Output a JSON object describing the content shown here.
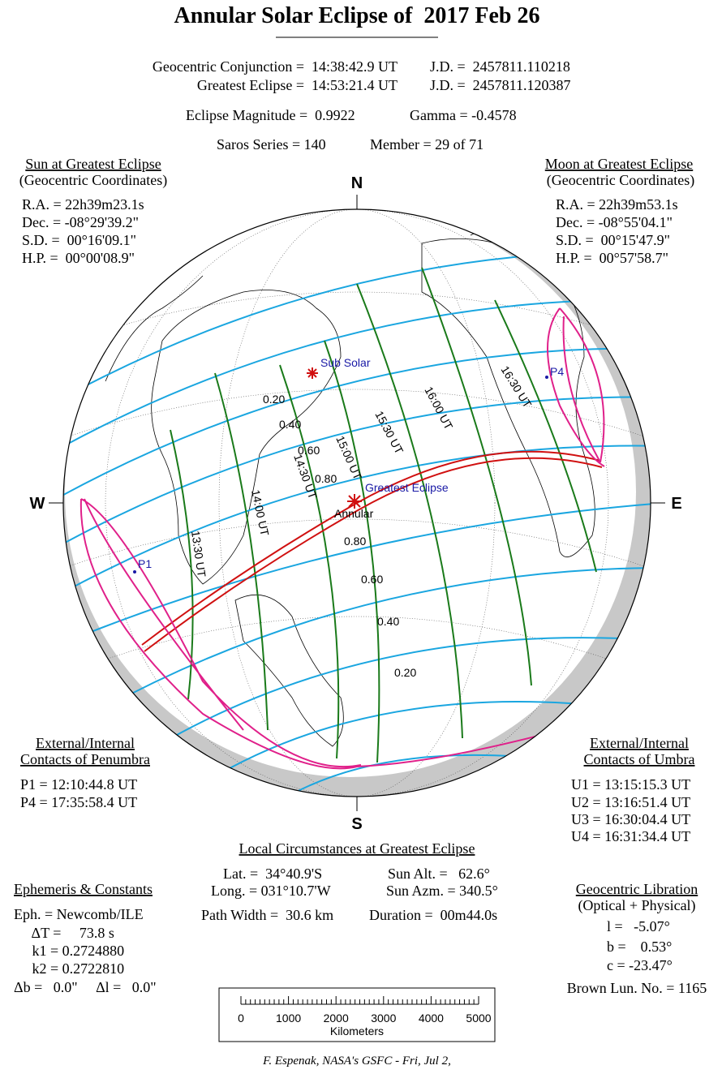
{
  "header": {
    "title": "Annular Solar Eclipse of  2017 Feb 26",
    "conjunction": "Geocentric Conjunction =  14:38:42.9 UT",
    "conjunction_jd": "J.D. =  2457811.110218",
    "greatest": "Greatest Eclipse =  14:53:21.4 UT",
    "greatest_jd": "J.D. =  2457811.120387",
    "magnitude": "Eclipse Magnitude =  0.9922",
    "gamma": "Gamma = -0.4578",
    "saros": "Saros Series = 140",
    "member": "Member = 29 of 71"
  },
  "sun": {
    "title": "Sun at Greatest Eclipse",
    "subtitle": "(Geocentric Coordinates)",
    "lines": [
      "R.A. = 22h39m23.1s",
      "Dec. = -08°29'39.2\"",
      "S.D. =  00°16'09.1\"",
      "H.P. =  00°00'08.9\""
    ]
  },
  "moon": {
    "title": "Moon at Greatest Eclipse",
    "subtitle": "(Geocentric Coordinates)",
    "lines": [
      "R.A. = 22h39m53.1s",
      "Dec. = -08°55'04.1\"",
      "S.D. =  00°15'47.9\"",
      "H.P. =  00°57'58.7\""
    ]
  },
  "compass": {
    "n": "N",
    "s": "S",
    "w": "W",
    "e": "E"
  },
  "map": {
    "sub_solar": "Sub Solar",
    "greatest_eclipse": "Greatest Eclipse",
    "annular": "Annular",
    "p1": "P1",
    "p4": "P4",
    "magnitudes_north": [
      "0.20",
      "0.40",
      "0.60",
      "0.80"
    ],
    "magnitudes_south": [
      "0.80",
      "0.60",
      "0.40",
      "0.20"
    ],
    "times": [
      "13:30 UT",
      "14:00 UT",
      "14:30 UT",
      "15:00 UT",
      "15:30 UT",
      "16:00 UT",
      "16:30 UT"
    ]
  },
  "penumbra": {
    "title1": "External/Internal",
    "title2": "Contacts of Penumbra",
    "lines": [
      "P1 = 12:10:44.8 UT",
      "P4 = 17:35:58.4 UT"
    ]
  },
  "umbra": {
    "title1": "External/Internal",
    "title2": "Contacts of Umbra",
    "lines": [
      "U1 = 13:15:15.3 UT",
      "U2 = 13:16:51.4 UT",
      "U3 = 16:30:04.4 UT",
      "U4 = 16:31:34.4 UT"
    ]
  },
  "local": {
    "title": "Local Circumstances at Greatest Eclipse",
    "lat": "Lat. =  34°40.9'S",
    "long": "Long. = 031°10.7'W",
    "sun_alt": "Sun Alt. =   62.6°",
    "sun_azm": "Sun Azm. = 340.5°",
    "path_width": "Path Width =  30.6 km",
    "duration": "Duration =  00m44.0s"
  },
  "ephemeris": {
    "title": "Ephemeris & Constants",
    "lines": [
      "Eph. = Newcomb/ILE",
      "     ΔT =     73.8 s",
      "     k1 = 0.2724880",
      "     k2 = 0.2722810",
      "Δb =   0.0\"     Δl =   0.0\""
    ]
  },
  "libration": {
    "title": "Geocentric Libration",
    "subtitle": "(Optical + Physical)",
    "lines": [
      "l =   -5.07°",
      "b =    0.53°",
      "c = -23.47°"
    ],
    "brown": "Brown Lun. No. = 1165"
  },
  "scale": {
    "ticks": [
      0,
      1000,
      2000,
      3000,
      4000,
      5000
    ],
    "label": "Kilometers"
  },
  "footer": "F. Espenak, NASA's GSFC - Fri, Jul 2,"
}
